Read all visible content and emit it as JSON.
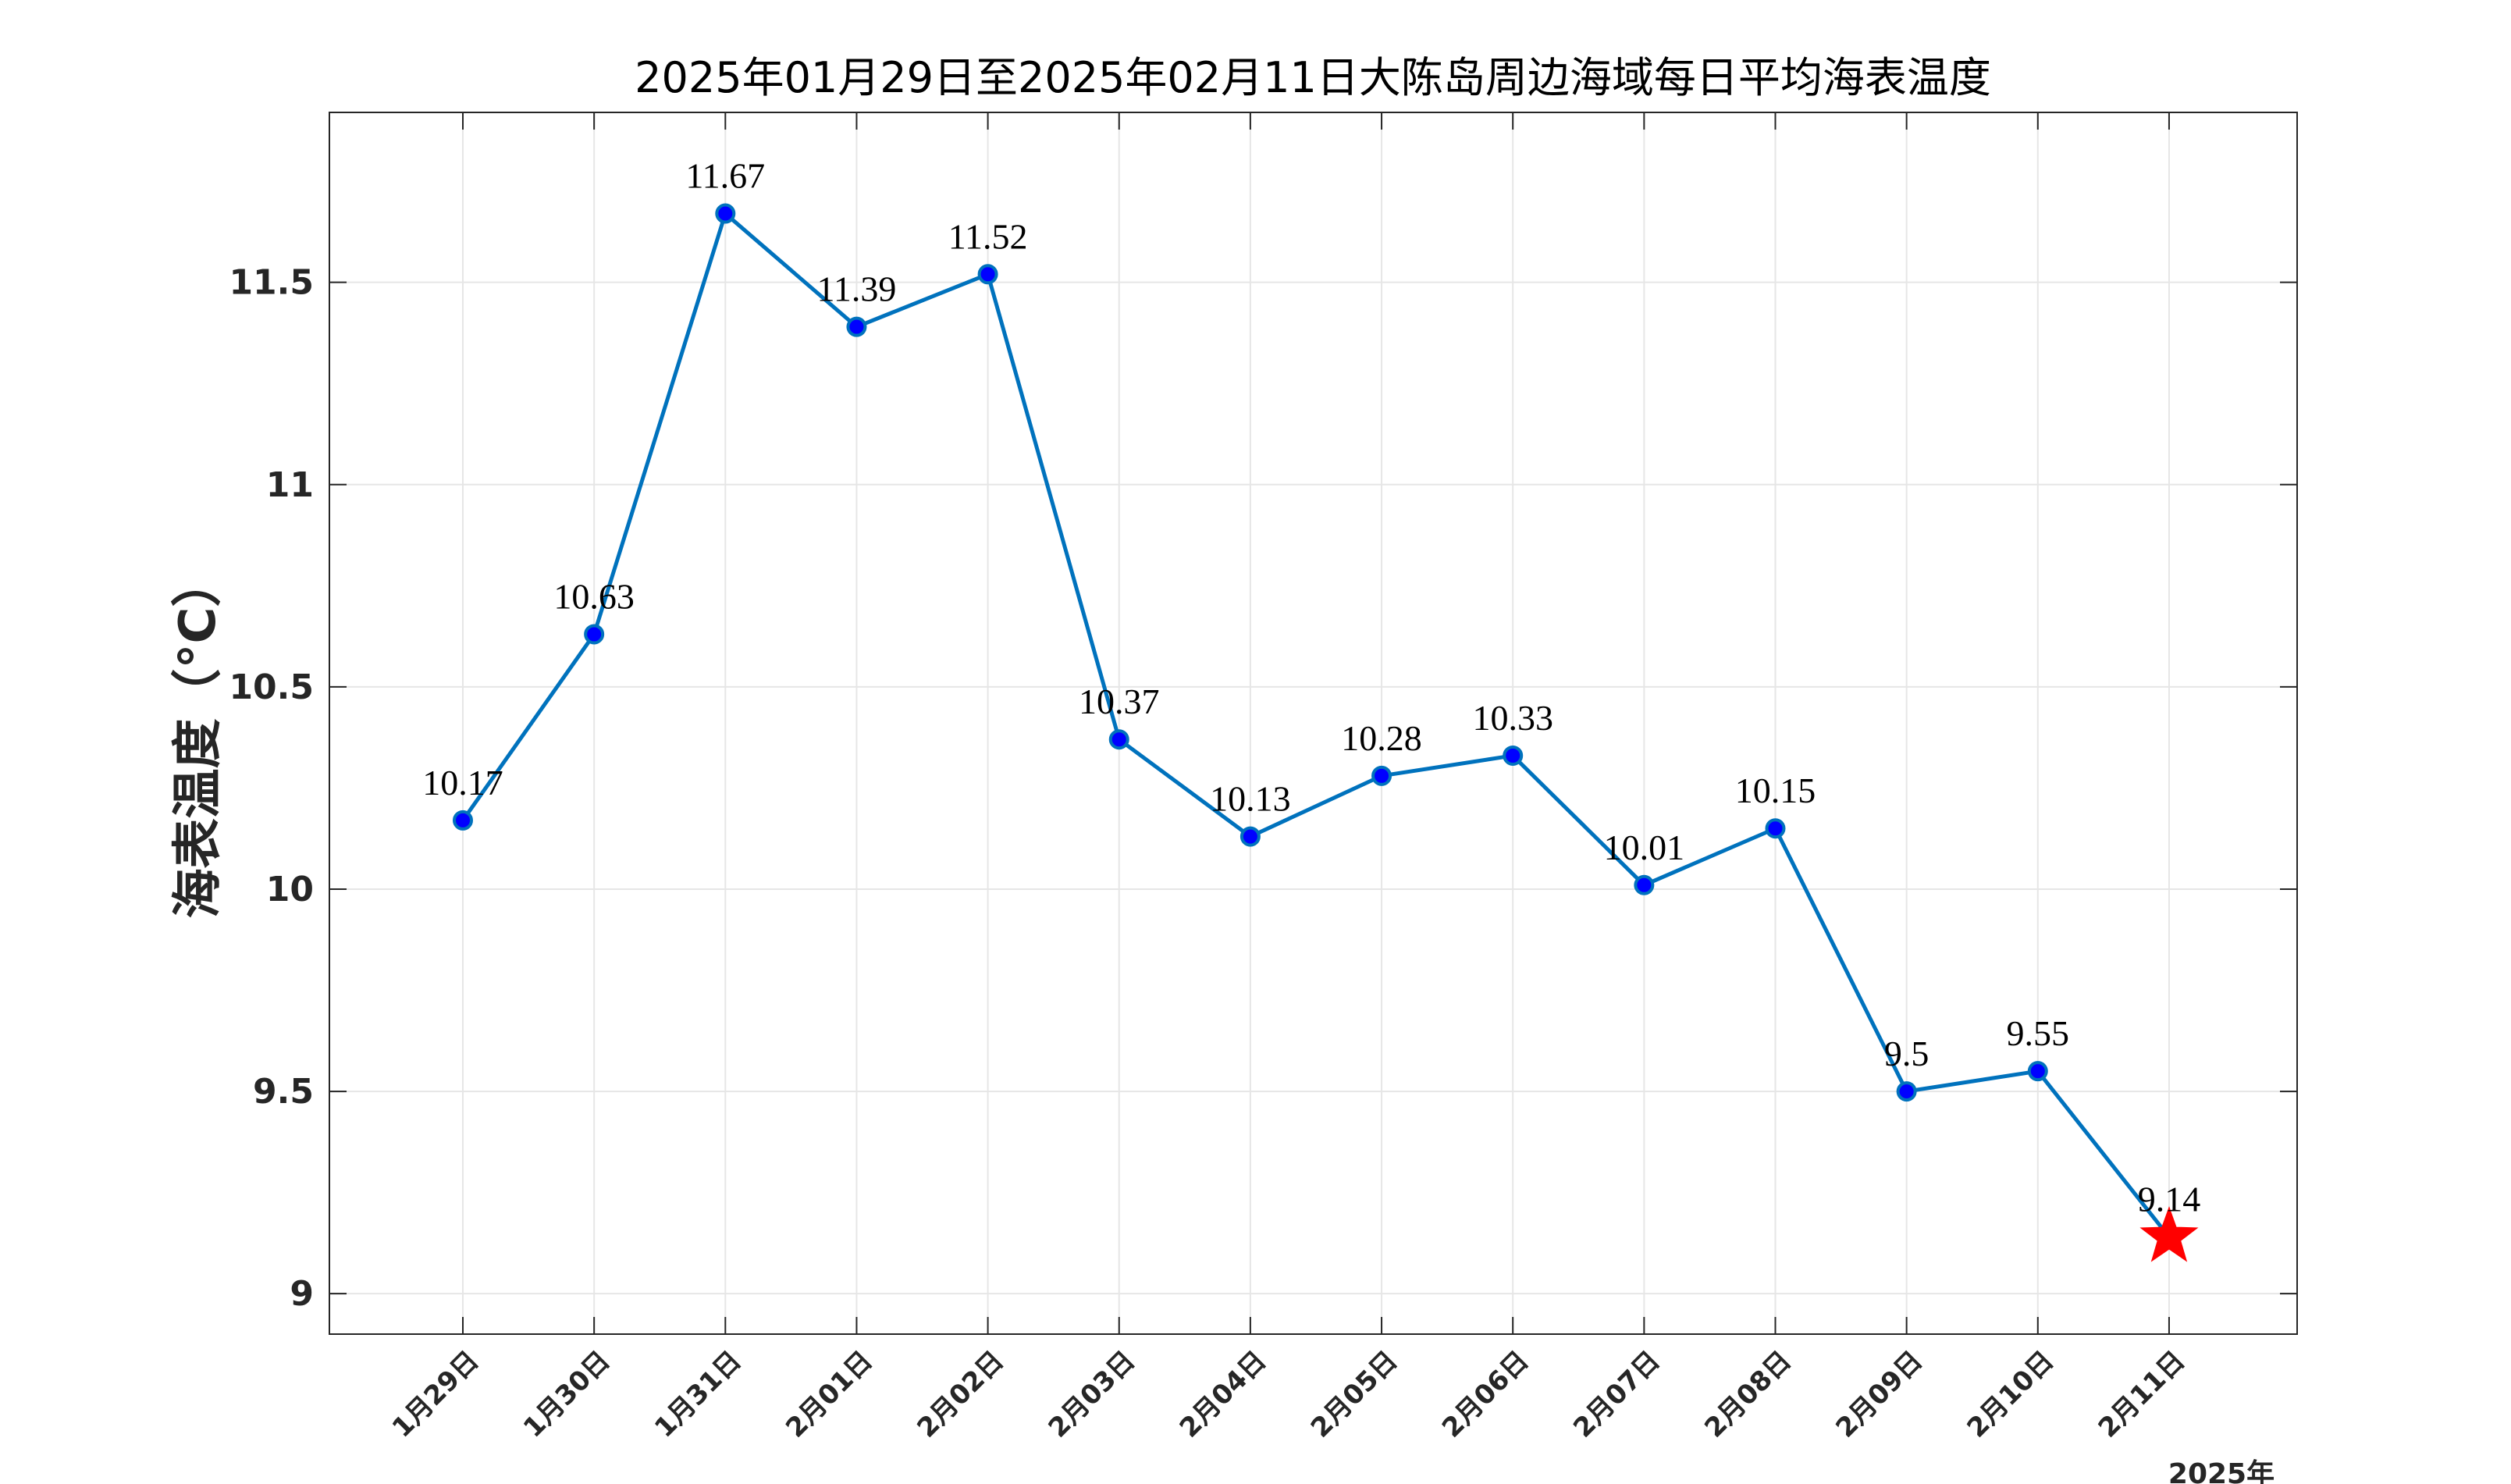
{
  "chart_data": {
    "type": "line",
    "title": "2025年01月29日至2025年02月11日大陈岛周边海域每日平均海表温度",
    "xlabel": "",
    "ylabel": "海表温度（°C）",
    "x_suffix": "2025年",
    "categories": [
      "1月29日",
      "1月30日",
      "1月31日",
      "2月01日",
      "2月02日",
      "2月03日",
      "2月04日",
      "2月05日",
      "2月06日",
      "2月07日",
      "2月08日",
      "2月09日",
      "2月10日",
      "2月11日"
    ],
    "series": [
      {
        "values": [
          10.17,
          10.63,
          11.67,
          11.39,
          11.52,
          10.37,
          10.13,
          10.28,
          10.33,
          10.01,
          10.15,
          9.5,
          9.55,
          9.14
        ],
        "labels": [
          "10.17",
          "10.63",
          "11.67",
          "11.39",
          "11.52",
          "10.37",
          "10.13",
          "10.28",
          "10.33",
          "10.01",
          "10.15",
          "9.5",
          "9.55",
          "9.14"
        ],
        "color": "#0072BD",
        "marker_color": "#0000FF",
        "highlight_color": "#FF0000",
        "highlight_marker": "star-icon",
        "highlight_index": 13
      }
    ],
    "ylim": [
      8.9,
      11.92
    ],
    "yticks": [
      9,
      9.5,
      10,
      10.5,
      11,
      11.5
    ],
    "ytick_labels": [
      "9",
      "9.5",
      "10",
      "10.5",
      "11",
      "11.5"
    ],
    "grid": true
  }
}
